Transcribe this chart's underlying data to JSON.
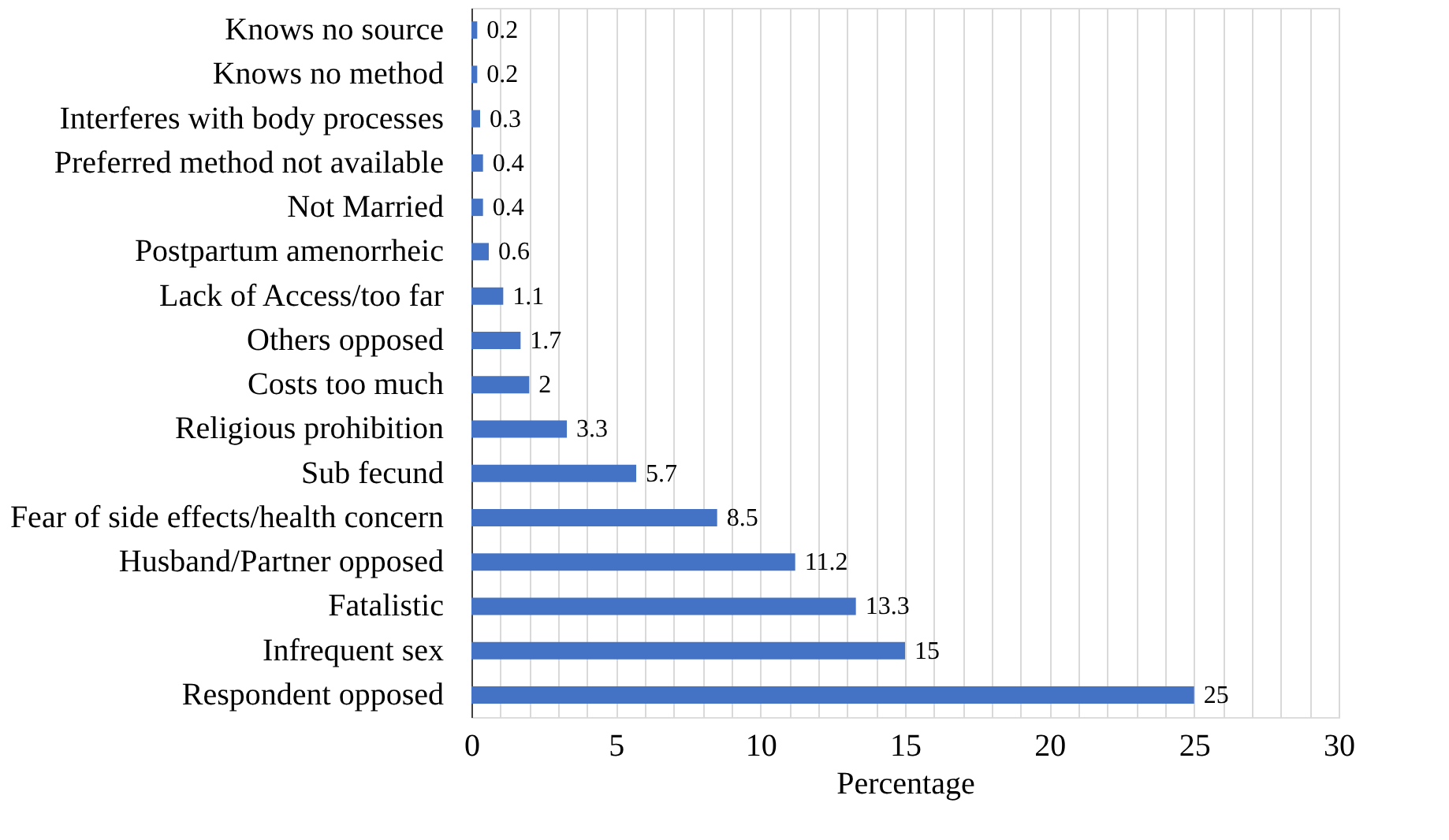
{
  "chart_data": {
    "type": "bar",
    "orientation": "horizontal",
    "xlabel": "Percentage",
    "categories": [
      "Knows no source",
      "Knows no method",
      "Interferes with body processes",
      "Preferred method not available",
      "Not Married",
      "Postpartum amenorrheic",
      "Lack of Access/too far",
      "Others opposed",
      "Costs too much",
      "Religious prohibition",
      "Sub fecund",
      "Fear of side effects/health concern",
      "Husband/Partner opposed",
      "Fatalistic",
      "Infrequent sex",
      "Respondent opposed"
    ],
    "values": [
      0.2,
      0.2,
      0.3,
      0.4,
      0.4,
      0.6,
      1.1,
      1.7,
      2,
      3.3,
      5.7,
      8.5,
      11.2,
      13.3,
      15,
      25
    ],
    "color": "#4472c4",
    "data_labels": true,
    "grid": "x",
    "xlim": [
      0,
      30
    ],
    "xticks": [
      0,
      {
        "value": 1,
        "label": null
      },
      {
        "value": 2,
        "label": null
      },
      {
        "value": 3,
        "label": null
      },
      {
        "value": 4,
        "label": null
      },
      5,
      {
        "value": 6,
        "label": null
      },
      {
        "value": 7,
        "label": null
      },
      {
        "value": 8,
        "label": null
      },
      {
        "value": 9,
        "label": null
      },
      10,
      {
        "value": 11,
        "label": null
      },
      {
        "value": 12,
        "label": null
      },
      {
        "value": 13,
        "label": null
      },
      {
        "value": 14,
        "label": null
      },
      15,
      {
        "value": 16,
        "label": null
      },
      {
        "value": 17,
        "label": null
      },
      {
        "value": 18,
        "label": null
      },
      {
        "value": 19,
        "label": null
      },
      20,
      {
        "value": 21,
        "label": null
      },
      {
        "value": 22,
        "label": null
      },
      {
        "value": 23,
        "label": null
      },
      {
        "value": 24,
        "label": null
      },
      25,
      {
        "value": 26,
        "label": null
      },
      {
        "value": 27,
        "label": null
      },
      {
        "value": 28,
        "label": null
      },
      {
        "value": 29,
        "label": null
      },
      30
    ]
  }
}
